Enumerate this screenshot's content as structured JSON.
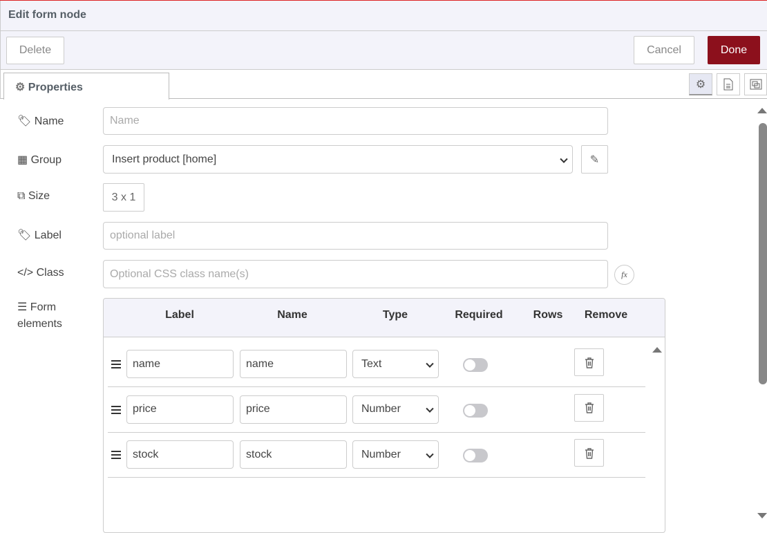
{
  "header": {
    "title": "Edit form node"
  },
  "toolbar": {
    "delete_label": "Delete",
    "cancel_label": "Cancel",
    "done_label": "Done",
    "done_color": "#8c101c"
  },
  "tabs": [
    {
      "label": "Properties",
      "icon": "gear-icon"
    }
  ],
  "tab_icons": [
    "gear-icon",
    "description-icon",
    "appearance-icon"
  ],
  "form": {
    "name": {
      "label": "Name",
      "placeholder": "Name",
      "value": ""
    },
    "group": {
      "label": "Group",
      "value": "Insert product [home]"
    },
    "size": {
      "label": "Size",
      "value": "3 x 1"
    },
    "label": {
      "label": "Label",
      "placeholder": "optional label",
      "value": ""
    },
    "class": {
      "label": "Class",
      "placeholder": "Optional CSS class name(s)",
      "value": "",
      "fx": "fx"
    },
    "elements": {
      "label_line1": "Form",
      "label_line2": "elements"
    }
  },
  "table": {
    "columns": [
      "Label",
      "Name",
      "Type",
      "Required",
      "Rows",
      "Remove"
    ],
    "rows": [
      {
        "label": "name",
        "name": "name",
        "type": "Text",
        "required": false
      },
      {
        "label": "price",
        "name": "price",
        "type": "Number",
        "required": false
      },
      {
        "label": "stock",
        "name": "stock",
        "type": "Number",
        "required": false
      }
    ]
  }
}
